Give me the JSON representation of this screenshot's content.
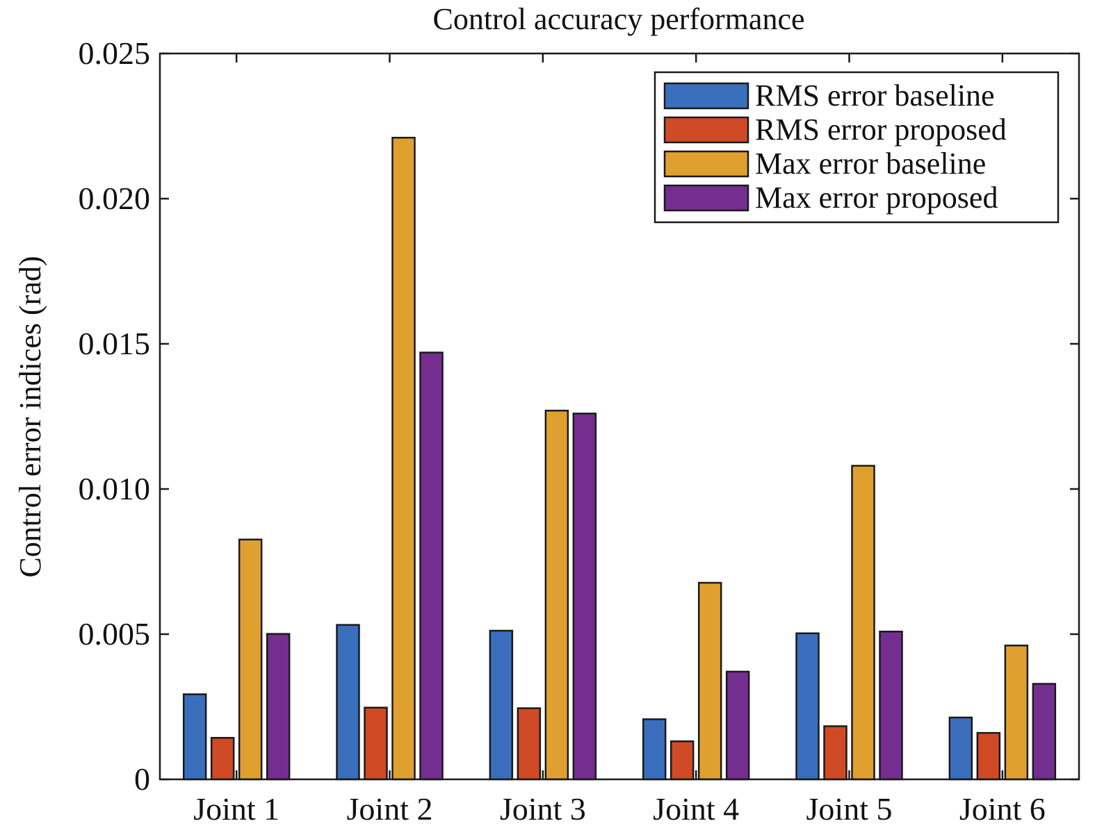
{
  "chart_data": {
    "type": "bar",
    "title": "Control accuracy performance",
    "xlabel": "",
    "ylabel": "Control error indices (rad)",
    "ylim": [
      0,
      0.025
    ],
    "yticks": [
      "0",
      "0.005",
      "0.010",
      "0.015",
      "0.020",
      "0.025"
    ],
    "ytick_values": [
      0,
      0.005,
      0.01,
      0.015,
      0.02,
      0.025
    ],
    "categories": [
      "Joint 1",
      "Joint 2",
      "Joint 3",
      "Joint 4",
      "Joint 5",
      "Joint 6"
    ],
    "legend_position": "top-right",
    "grid": false,
    "series": [
      {
        "name": "RMS error baseline",
        "color": "#3A6FBE",
        "values": [
          0.00293,
          0.00532,
          0.00512,
          0.00207,
          0.00503,
          0.00213
        ]
      },
      {
        "name": "RMS error proposed",
        "color": "#D04A26",
        "values": [
          0.00143,
          0.00247,
          0.00245,
          0.00131,
          0.00183,
          0.0016
        ]
      },
      {
        "name": "Max error baseline",
        "color": "#E0A030",
        "values": [
          0.00826,
          0.0221,
          0.0127,
          0.00677,
          0.0108,
          0.00461
        ]
      },
      {
        "name": "Max error proposed",
        "color": "#742E90",
        "values": [
          0.00501,
          0.0147,
          0.0126,
          0.00371,
          0.00509,
          0.00329
        ]
      }
    ]
  }
}
